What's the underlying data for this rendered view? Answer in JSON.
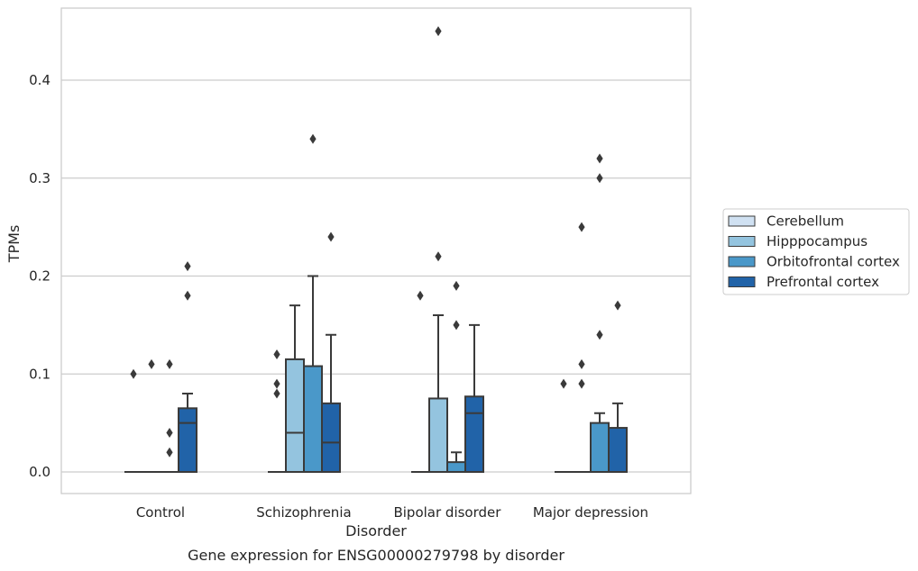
{
  "chart_data": {
    "type": "box",
    "title": "",
    "caption": "Gene expression for ENSG00000279798 by disorder",
    "xlabel": "Disorder",
    "ylabel": "TPMs",
    "ylim": [
      -0.022,
      0.475
    ],
    "yticks": [
      0.0,
      0.1,
      0.2,
      0.3,
      0.4
    ],
    "ytick_labels": [
      "0.0",
      "0.1",
      "0.2",
      "0.3",
      "0.4"
    ],
    "grid": "horizontal",
    "legend_position": "right",
    "categories": [
      "Control",
      "Schizophrenia",
      "Bipolar disorder",
      "Major depression"
    ],
    "series": [
      {
        "name": "Cerebellum",
        "color": "#d0e1f2",
        "boxes": [
          {
            "q1": 0,
            "median": 0,
            "q3": 0,
            "whisker_low": 0,
            "whisker_high": 0,
            "outliers": [
              0.1
            ]
          },
          {
            "q1": 0,
            "median": 0,
            "q3": 0,
            "whisker_low": 0,
            "whisker_high": 0,
            "outliers": [
              0.08,
              0.09,
              0.12
            ]
          },
          {
            "q1": 0,
            "median": 0,
            "q3": 0,
            "whisker_low": 0,
            "whisker_high": 0,
            "outliers": [
              0.18
            ]
          },
          {
            "q1": 0,
            "median": 0,
            "q3": 0,
            "whisker_low": 0,
            "whisker_high": 0,
            "outliers": [
              0.09
            ]
          }
        ]
      },
      {
        "name": "Hipppocampus",
        "color": "#94c4df",
        "boxes": [
          {
            "q1": 0,
            "median": 0,
            "q3": 0,
            "whisker_low": 0,
            "whisker_high": 0,
            "outliers": [
              0.11
            ]
          },
          {
            "q1": 0,
            "median": 0.04,
            "q3": 0.115,
            "whisker_low": 0,
            "whisker_high": 0.17,
            "outliers": []
          },
          {
            "q1": 0,
            "median": 0,
            "q3": 0.075,
            "whisker_low": 0,
            "whisker_high": 0.16,
            "outliers": [
              0.22,
              0.45
            ]
          },
          {
            "q1": 0,
            "median": 0,
            "q3": 0,
            "whisker_low": 0,
            "whisker_high": 0,
            "outliers": [
              0.09,
              0.11,
              0.25
            ]
          }
        ]
      },
      {
        "name": "Orbitofrontal cortex",
        "color": "#4a98c9",
        "boxes": [
          {
            "q1": 0,
            "median": 0,
            "q3": 0,
            "whisker_low": 0,
            "whisker_high": 0,
            "outliers": [
              0.02,
              0.04,
              0.11
            ]
          },
          {
            "q1": 0,
            "median": 0,
            "q3": 0.108,
            "whisker_low": 0,
            "whisker_high": 0.2,
            "outliers": [
              0.34
            ]
          },
          {
            "q1": 0,
            "median": 0,
            "q3": 0.01,
            "whisker_low": 0,
            "whisker_high": 0.02,
            "outliers": [
              0.15,
              0.19
            ]
          },
          {
            "q1": 0,
            "median": 0,
            "q3": 0.05,
            "whisker_low": 0,
            "whisker_high": 0.06,
            "outliers": [
              0.14,
              0.3,
              0.32
            ]
          }
        ]
      },
      {
        "name": "Prefrontal cortex",
        "color": "#2163a8",
        "boxes": [
          {
            "q1": 0,
            "median": 0.05,
            "q3": 0.065,
            "whisker_low": 0,
            "whisker_high": 0.08,
            "outliers": [
              0.18,
              0.21
            ]
          },
          {
            "q1": 0,
            "median": 0.03,
            "q3": 0.07,
            "whisker_low": 0,
            "whisker_high": 0.14,
            "outliers": [
              0.24
            ]
          },
          {
            "q1": 0,
            "median": 0.06,
            "q3": 0.077,
            "whisker_low": 0,
            "whisker_high": 0.15,
            "outliers": []
          },
          {
            "q1": 0,
            "median": 0,
            "q3": 0.045,
            "whisker_low": 0,
            "whisker_high": 0.07,
            "outliers": [
              0.17
            ]
          }
        ]
      }
    ]
  }
}
